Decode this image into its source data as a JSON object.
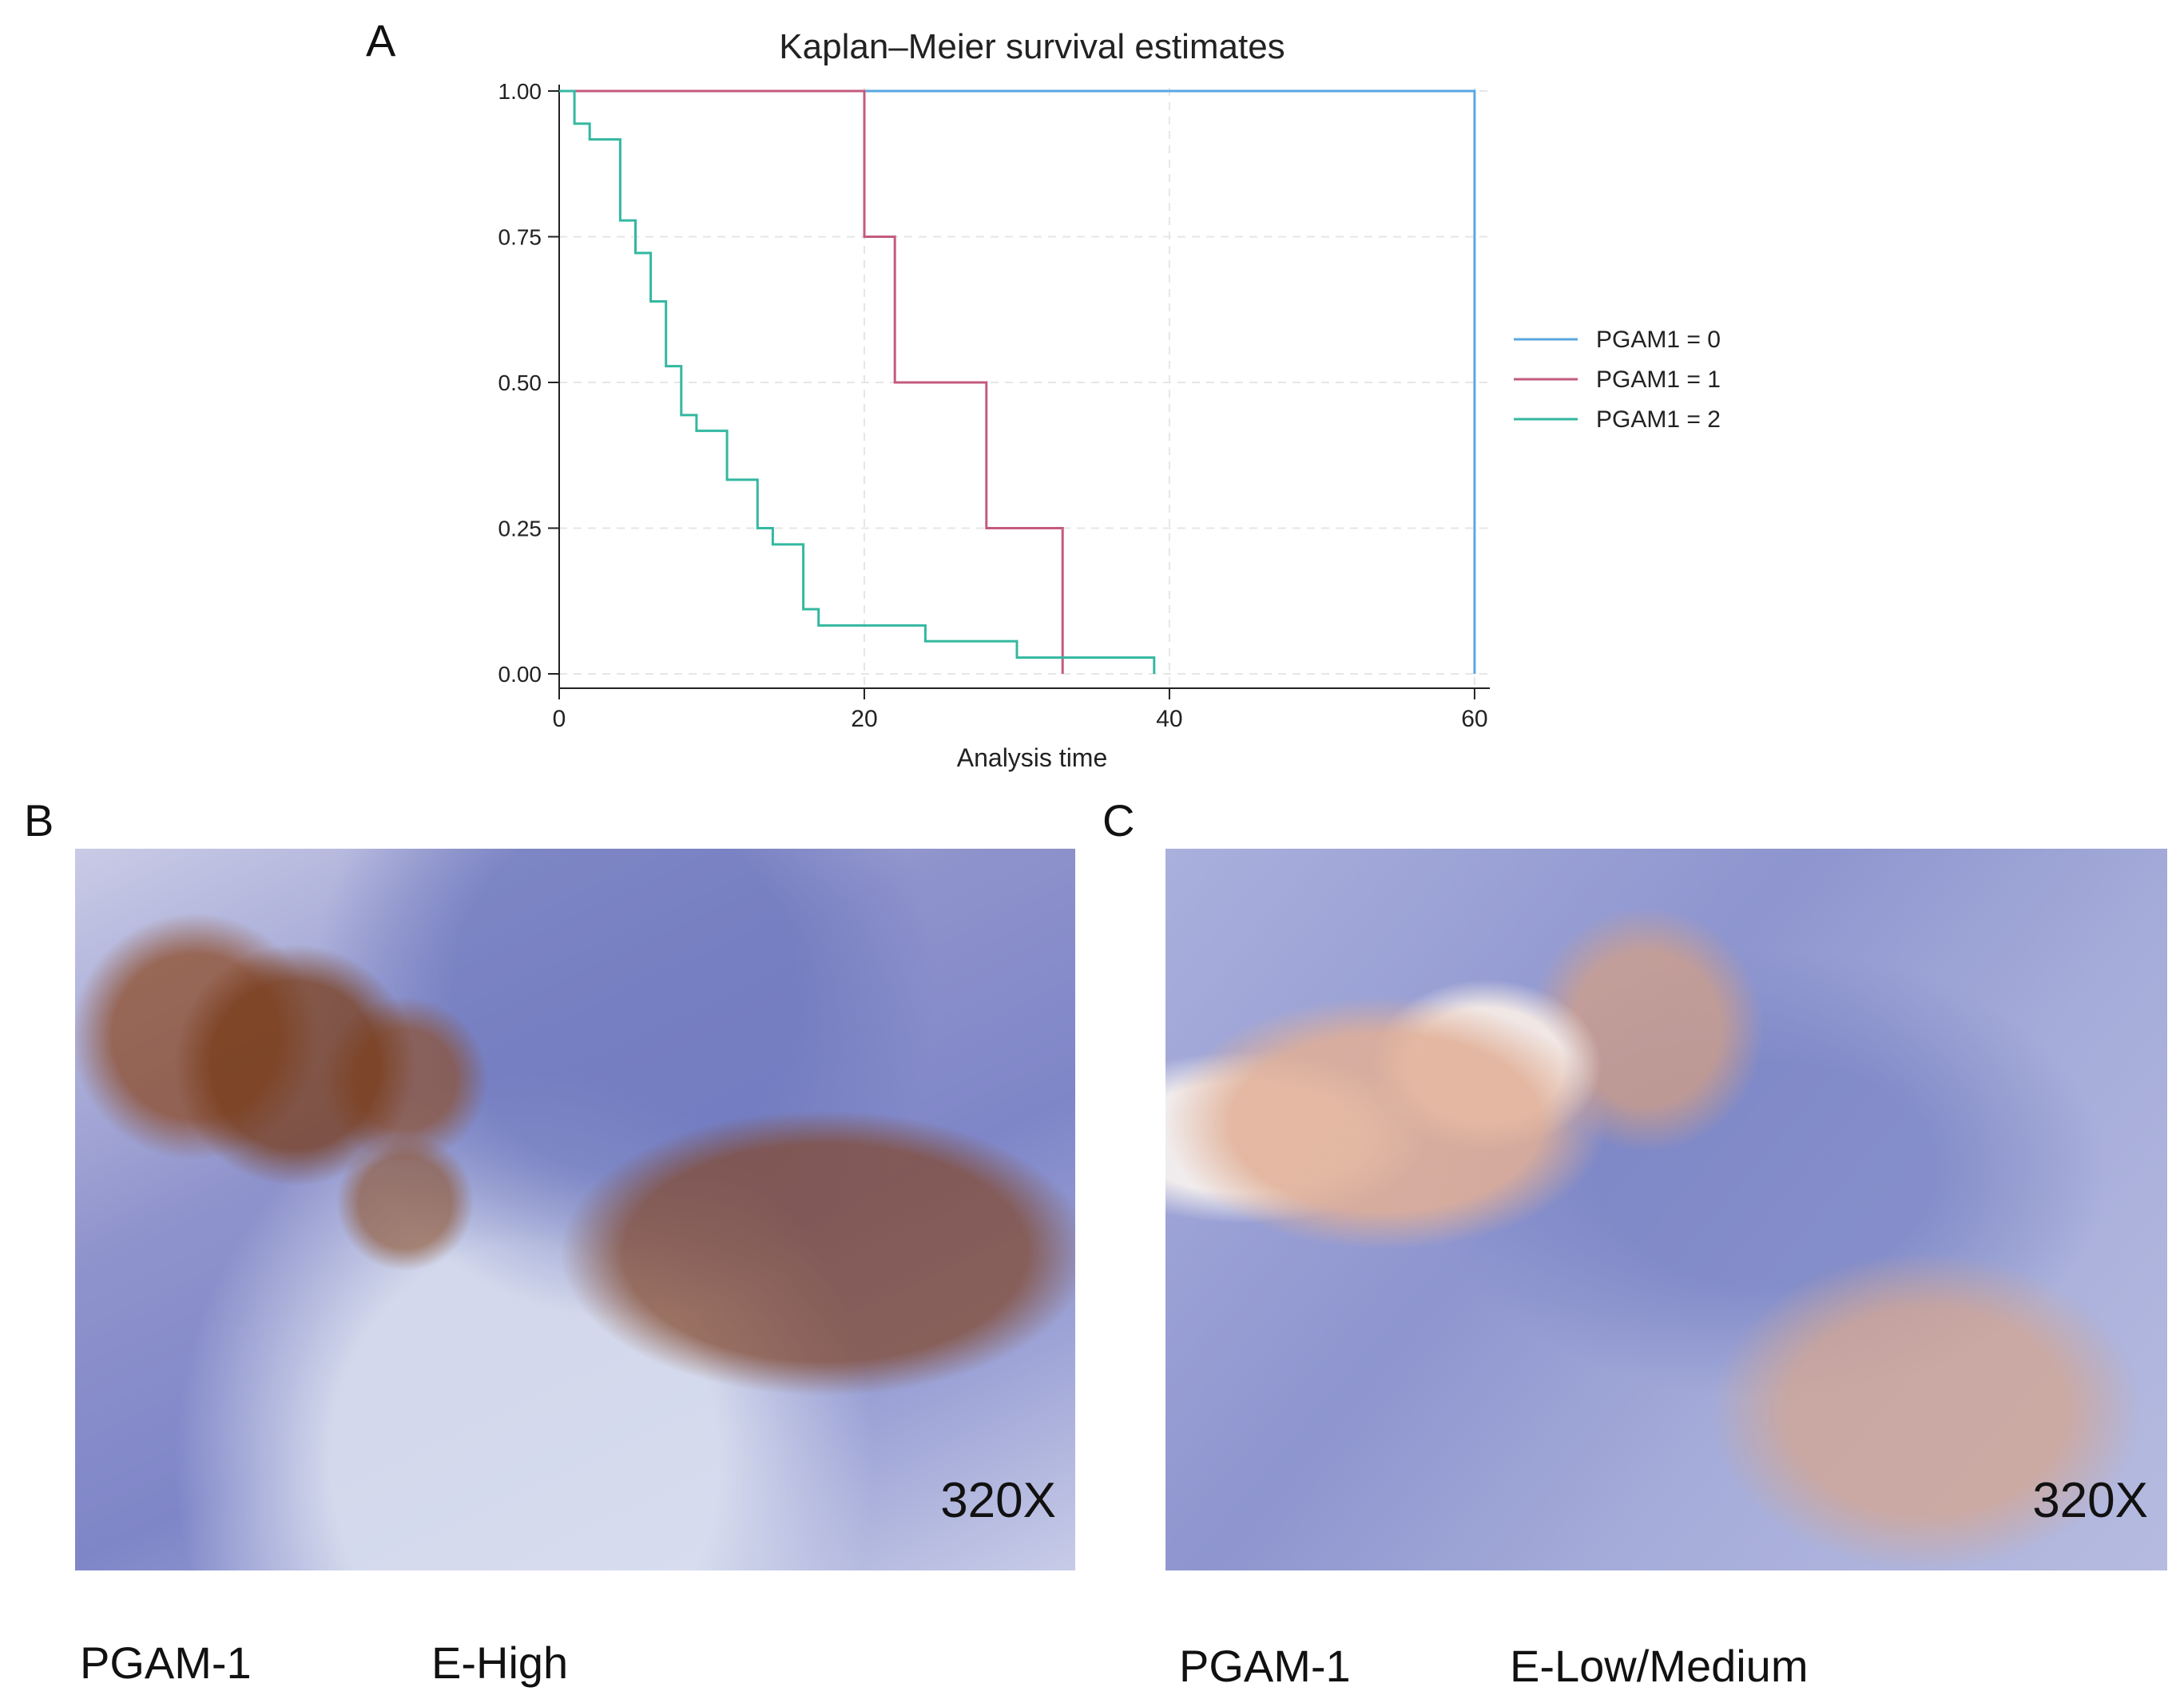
{
  "panels": {
    "a": {
      "letter": "A"
    },
    "b": {
      "letter": "B",
      "magnification": "320X",
      "caption_left": "PGAM-1",
      "caption_right": "E-High"
    },
    "c": {
      "letter": "C",
      "magnification": "320X",
      "caption_left": "PGAM-1",
      "caption_right": "E-Low/Medium"
    }
  },
  "chart_data": {
    "type": "line",
    "step": true,
    "title": "Kaplan–Meier survival estimates",
    "xlabel": "Analysis time",
    "ylabel": "",
    "xlim": [
      0,
      61
    ],
    "ylim": [
      0,
      1
    ],
    "x_ticks": [
      0,
      20,
      40,
      60
    ],
    "y_ticks": [
      0,
      0.25,
      0.5,
      0.75,
      1
    ],
    "x_tick_labels": [
      "0",
      "20",
      "40",
      "60"
    ],
    "y_tick_labels": [
      "0.00",
      "0.25",
      "0.50",
      "0.75",
      "1.00"
    ],
    "grid": true,
    "legend_position": "right",
    "series": [
      {
        "name": "PGAM1 = 0",
        "color": "#5aa7e0",
        "x": [
          0,
          60,
          60
        ],
        "y": [
          1,
          1,
          0
        ]
      },
      {
        "name": "PGAM1 = 1",
        "color": "#c45a80",
        "x": [
          0,
          20,
          20,
          22,
          22,
          28,
          28,
          33,
          33
        ],
        "y": [
          1,
          1,
          0.75,
          0.75,
          0.5,
          0.5,
          0.25,
          0.25,
          0
        ]
      },
      {
        "name": "PGAM1 = 2",
        "color": "#33b8a0",
        "x": [
          0,
          1,
          1,
          2,
          2,
          4,
          4,
          5,
          5,
          6,
          6,
          7,
          7,
          8,
          8,
          9,
          9,
          11,
          11,
          13,
          13,
          14,
          14,
          16,
          16,
          17,
          17,
          24,
          24,
          30,
          30,
          39,
          39
        ],
        "y": [
          1,
          1,
          0.944,
          0.944,
          0.917,
          0.917,
          0.778,
          0.778,
          0.722,
          0.722,
          0.639,
          0.639,
          0.528,
          0.528,
          0.444,
          0.444,
          0.417,
          0.417,
          0.333,
          0.333,
          0.25,
          0.25,
          0.222,
          0.222,
          0.111,
          0.111,
          0.083,
          0.083,
          0.056,
          0.056,
          0.028,
          0.028,
          0
        ]
      }
    ]
  }
}
